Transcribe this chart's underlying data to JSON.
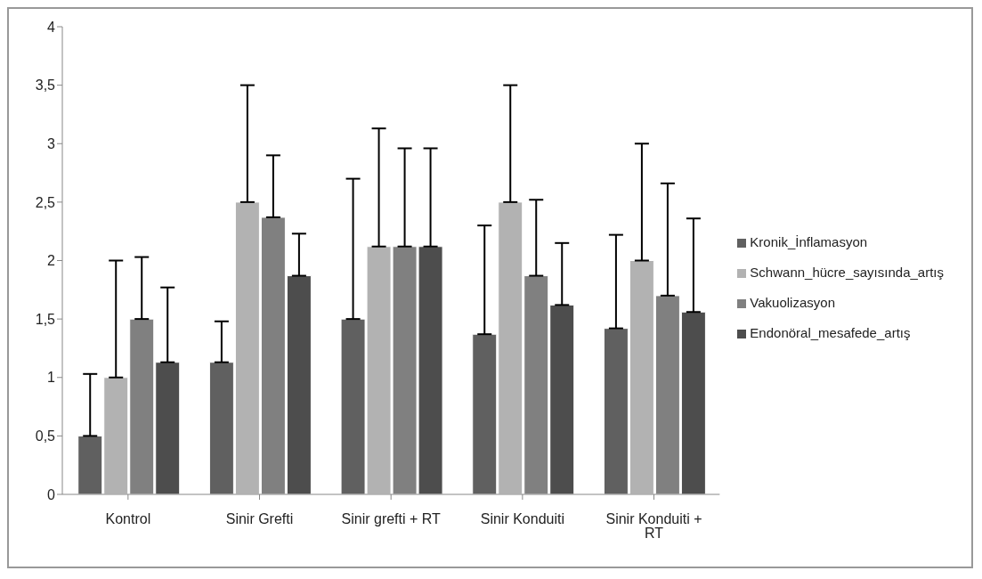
{
  "chart_data": {
    "type": "bar",
    "categories": [
      "Kontrol",
      "Sinir Grefti",
      "Sinir grefti + RT",
      "Sinir Konduiti",
      "Sinir Konduiti + RT"
    ],
    "series": [
      {
        "name": "Kronik_İnflamasyon",
        "color": "#606060",
        "values": [
          0.5,
          1.13,
          1.5,
          1.37,
          1.42
        ],
        "errors": [
          [
            0.5,
            1.03
          ],
          [
            1.13,
            1.48
          ],
          [
            1.5,
            2.7
          ],
          [
            1.37,
            2.3
          ],
          [
            1.42,
            2.22
          ]
        ]
      },
      {
        "name": "Schwann_hücre_sayısında_artış",
        "color": "#b2b2b2",
        "values": [
          1.0,
          2.5,
          2.12,
          2.5,
          2.0
        ],
        "errors": [
          [
            1.0,
            2.0
          ],
          [
            2.5,
            3.5
          ],
          [
            2.12,
            3.13
          ],
          [
            2.5,
            3.5
          ],
          [
            2.0,
            3.0
          ]
        ]
      },
      {
        "name": "Vakuolizasyon",
        "color": "#808080",
        "values": [
          1.5,
          2.37,
          2.12,
          1.87,
          1.7
        ],
        "errors": [
          [
            1.5,
            2.03
          ],
          [
            2.37,
            2.9
          ],
          [
            2.12,
            2.96
          ],
          [
            1.87,
            2.52
          ],
          [
            1.7,
            2.66
          ]
        ]
      },
      {
        "name": "Endonöral_mesafede_artış",
        "color": "#4d4d4d",
        "values": [
          1.13,
          1.87,
          2.12,
          1.62,
          1.56
        ],
        "errors": [
          [
            1.13,
            1.77
          ],
          [
            1.87,
            2.23
          ],
          [
            2.12,
            2.96
          ],
          [
            1.62,
            2.15
          ],
          [
            1.56,
            2.36
          ]
        ]
      }
    ],
    "ylim": [
      0,
      4
    ],
    "yticks": [
      0,
      {
        "value": 0.5,
        "label": "0,5"
      },
      1,
      {
        "value": 1.5,
        "label": "1,5"
      },
      2,
      {
        "value": 2.5,
        "label": "2,5"
      },
      3,
      {
        "value": 3.5,
        "label": "3,5"
      },
      4
    ],
    "grid": false,
    "legend": "right"
  }
}
